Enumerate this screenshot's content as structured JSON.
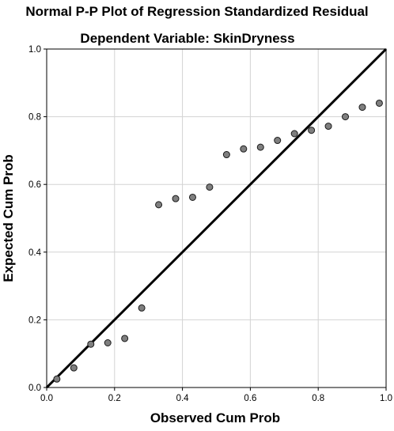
{
  "chart_data": {
    "type": "scatter",
    "title": "Normal P-P Plot of Regression Standardized Residual",
    "subtitle": "Dependent Variable: SkinDryness",
    "xlabel": "Observed Cum Prob",
    "ylabel": "Expected Cum Prob",
    "xlim": [
      0.0,
      1.0
    ],
    "ylim": [
      0.0,
      1.0
    ],
    "xticks": [
      "0.0",
      "0.2",
      "0.4",
      "0.6",
      "0.8",
      "1.0"
    ],
    "yticks": [
      "0.0",
      "0.2",
      "0.4",
      "0.6",
      "0.8",
      "1.0"
    ],
    "grid": true,
    "reference_line": {
      "from": [
        0.0,
        0.0
      ],
      "to": [
        1.0,
        1.0
      ]
    },
    "points": [
      {
        "x": 0.03,
        "y": 0.025
      },
      {
        "x": 0.08,
        "y": 0.058
      },
      {
        "x": 0.13,
        "y": 0.128
      },
      {
        "x": 0.18,
        "y": 0.132
      },
      {
        "x": 0.23,
        "y": 0.145
      },
      {
        "x": 0.28,
        "y": 0.235
      },
      {
        "x": 0.33,
        "y": 0.54
      },
      {
        "x": 0.38,
        "y": 0.558
      },
      {
        "x": 0.43,
        "y": 0.562
      },
      {
        "x": 0.48,
        "y": 0.592
      },
      {
        "x": 0.53,
        "y": 0.688
      },
      {
        "x": 0.58,
        "y": 0.705
      },
      {
        "x": 0.63,
        "y": 0.71
      },
      {
        "x": 0.68,
        "y": 0.73
      },
      {
        "x": 0.73,
        "y": 0.75
      },
      {
        "x": 0.78,
        "y": 0.76
      },
      {
        "x": 0.83,
        "y": 0.772
      },
      {
        "x": 0.88,
        "y": 0.8
      },
      {
        "x": 0.93,
        "y": 0.828
      },
      {
        "x": 0.98,
        "y": 0.84
      }
    ],
    "colors": {
      "point_fill": "#7f7f7f",
      "point_stroke": "#1a1a1a",
      "reference_line": "#000000",
      "grid": "#d3d3d3",
      "frame": "#000000"
    }
  }
}
